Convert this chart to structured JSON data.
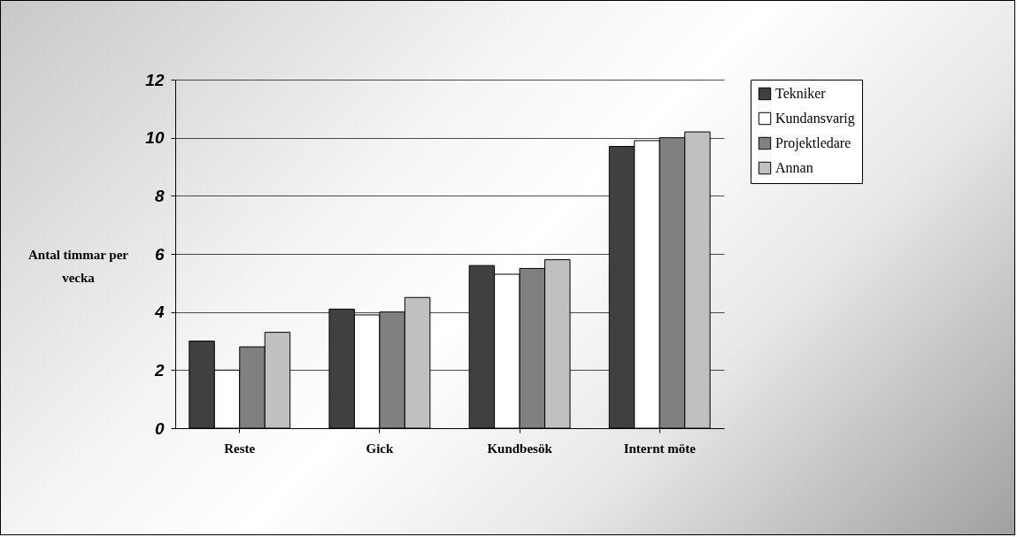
{
  "chart_data": {
    "type": "bar",
    "ylabel": "Antal timmar per vecka",
    "categories": [
      "Reste",
      "Gick",
      "Kundbesök",
      "Internt möte"
    ],
    "series": [
      {
        "name": "Tekniker",
        "color": "#404040",
        "values": [
          3.0,
          4.1,
          5.6,
          9.7
        ]
      },
      {
        "name": "Kundansvarig",
        "color": "#ffffff",
        "values": [
          2.0,
          3.9,
          5.3,
          9.9
        ]
      },
      {
        "name": "Projektledare",
        "color": "#808080",
        "values": [
          2.8,
          4.0,
          5.5,
          10.0
        ]
      },
      {
        "name": "Annan",
        "color": "#c0c0c0",
        "values": [
          3.3,
          4.5,
          5.8,
          10.2
        ]
      }
    ],
    "ylim": [
      0,
      12
    ],
    "yticks": [
      0,
      2,
      4,
      6,
      8,
      10,
      12
    ],
    "grid": "y",
    "legend": "right"
  }
}
